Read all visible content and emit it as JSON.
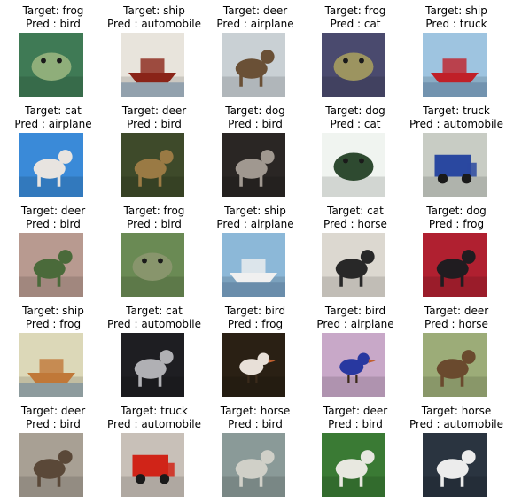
{
  "figure": {
    "rows": 5,
    "cols": 5,
    "samples": [
      {
        "target": "Target: frog",
        "pred": "Pred : bird",
        "subject": "green frog on leaves",
        "bg": "#3f7a55",
        "fg": "#8fae7a",
        "shape": "blob"
      },
      {
        "target": "Target: ship",
        "pred": "Pred : automobile",
        "subject": "red riverboat",
        "bg": "#e8e4dc",
        "fg": "#8a2418",
        "shape": "boat"
      },
      {
        "target": "Target: deer",
        "pred": "Pred : airplane",
        "subject": "deer in snowy forest",
        "bg": "#c9d0d4",
        "fg": "#6a5036",
        "shape": "animal"
      },
      {
        "target": "Target: frog",
        "pred": "Pred : cat",
        "subject": "frog on purple rock",
        "bg": "#4a4a6e",
        "fg": "#9c9460",
        "shape": "blob"
      },
      {
        "target": "Target: ship",
        "pred": "Pred : truck",
        "subject": "red cargo ship",
        "bg": "#9ec4e0",
        "fg": "#c02028",
        "shape": "boat"
      },
      {
        "target": "Target: cat",
        "pred": "Pred : airplane",
        "subject": "white kitten blue backdrop",
        "bg": "#3a8ad8",
        "fg": "#e8e4e0",
        "shape": "animal"
      },
      {
        "target": "Target: deer",
        "pred": "Pred : bird",
        "subject": "deer in grass",
        "bg": "#3e4a2a",
        "fg": "#9a7a44",
        "shape": "animal"
      },
      {
        "target": "Target: dog",
        "pred": "Pred : bird",
        "subject": "dogs on dark ground",
        "bg": "#2a2624",
        "fg": "#a09890",
        "shape": "animal"
      },
      {
        "target": "Target: dog",
        "pred": "Pred : cat",
        "subject": "dark dog on white",
        "bg": "#f0f4f0",
        "fg": "#2e4a30",
        "shape": "blob"
      },
      {
        "target": "Target: truck",
        "pred": "Pred : automobile",
        "subject": "blue truck",
        "bg": "#c8ccc4",
        "fg": "#2a48a0",
        "shape": "vehicle"
      },
      {
        "target": "Target: deer",
        "pred": "Pred : bird",
        "subject": "deer among shrubs",
        "bg": "#b89a90",
        "fg": "#4a6a3a",
        "shape": "animal"
      },
      {
        "target": "Target: frog",
        "pred": "Pred : bird",
        "subject": "frog on mossy ground",
        "bg": "#6a8a54",
        "fg": "#88956c",
        "shape": "blob"
      },
      {
        "target": "Target: ship",
        "pred": "Pred : airplane",
        "subject": "white boat on water",
        "bg": "#8cb8d8",
        "fg": "#f0f0f0",
        "shape": "boat"
      },
      {
        "target": "Target: cat",
        "pred": "Pred : horse",
        "subject": "black cat",
        "bg": "#dcd8d0",
        "fg": "#282828",
        "shape": "animal"
      },
      {
        "target": "Target: dog",
        "pred": "Pred : frog",
        "subject": "black dog red backdrop",
        "bg": "#b02030",
        "fg": "#201c20",
        "shape": "animal"
      },
      {
        "target": "Target: ship",
        "pred": "Pred : frog",
        "subject": "rowing boat on pale water",
        "bg": "#dcd8b8",
        "fg": "#c07838",
        "shape": "boat"
      },
      {
        "target": "Target: cat",
        "pred": "Pred : automobile",
        "subject": "grey cat in shadow",
        "bg": "#1e1e22",
        "fg": "#b0b0b4",
        "shape": "animal"
      },
      {
        "target": "Target: bird",
        "pred": "Pred : frog",
        "subject": "bird with red crest",
        "bg": "#2a2014",
        "fg": "#e8e0d8",
        "shape": "bird"
      },
      {
        "target": "Target: bird",
        "pred": "Pred : airplane",
        "subject": "blue bird on mauve ground",
        "bg": "#c8a8c8",
        "fg": "#2838a0",
        "shape": "bird"
      },
      {
        "target": "Target: deer",
        "pred": "Pred : horse",
        "subject": "deer on green field",
        "bg": "#9cac78",
        "fg": "#6a4a2e",
        "shape": "animal"
      },
      {
        "target": "Target: deer",
        "pred": "Pred : bird",
        "subject": "deer by trees",
        "bg": "#a8a094",
        "fg": "#5a4838",
        "shape": "animal"
      },
      {
        "target": "Target: truck",
        "pred": "Pred : automobile",
        "subject": "red fire truck",
        "bg": "#c8c0b8",
        "fg": "#d02418",
        "shape": "vehicle"
      },
      {
        "target": "Target: horse",
        "pred": "Pred : bird",
        "subject": "horse behind fence",
        "bg": "#8a9a98",
        "fg": "#d0d0c8",
        "shape": "animal"
      },
      {
        "target": "Target: deer",
        "pred": "Pred : bird",
        "subject": "white deer on grass",
        "bg": "#3a7a34",
        "fg": "#e8e8e0",
        "shape": "animal"
      },
      {
        "target": "Target: horse",
        "pred": "Pred : automobile",
        "subject": "white horse rearing",
        "bg": "#2a3440",
        "fg": "#ececec",
        "shape": "animal"
      }
    ]
  }
}
